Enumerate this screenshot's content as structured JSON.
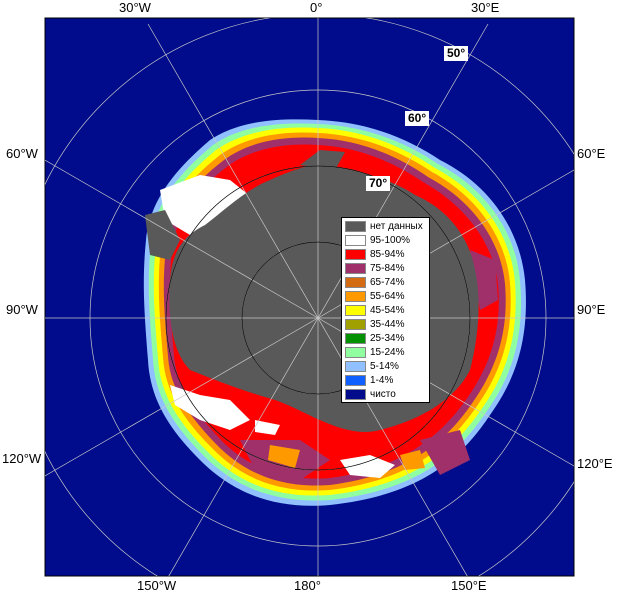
{
  "map": {
    "lon_labels": {
      "top_left": "30°W",
      "top_center": "0°",
      "top_right": "30°E",
      "left_upper": "60°W",
      "right_upper": "60°E",
      "left_middle": "90°W",
      "right_middle": "90°E",
      "left_lower": "120°W",
      "right_lower": "120°E",
      "bottom_left": "150°W",
      "bottom_center": "180°",
      "bottom_right": "150°E"
    },
    "lat_labels": [
      "50°",
      "60°",
      "70°"
    ],
    "colors": {
      "ocean": "#000c8c",
      "land": "#595959",
      "frame_bg": "#ffffff",
      "graticule": "#c8c8c8"
    }
  },
  "legend": {
    "items": [
      {
        "label": "нет данных",
        "color": "#595959"
      },
      {
        "label": "95-100%",
        "color": "#ffffff"
      },
      {
        "label": "85-94%",
        "color": "#ff0000"
      },
      {
        "label": "75-84%",
        "color": "#a0306a"
      },
      {
        "label": "65-74%",
        "color": "#d26b12"
      },
      {
        "label": "55-64%",
        "color": "#ff9900"
      },
      {
        "label": "45-54%",
        "color": "#ffff00"
      },
      {
        "label": "35-44%",
        "color": "#a0a000"
      },
      {
        "label": "25-34%",
        "color": "#009000"
      },
      {
        "label": "15-24%",
        "color": "#90ffa0"
      },
      {
        "label": "5-14%",
        "color": "#90c0ff"
      },
      {
        "label": "1-4%",
        "color": "#1060ff"
      },
      {
        "label": "чисто",
        "color": "#000c8c"
      }
    ]
  }
}
